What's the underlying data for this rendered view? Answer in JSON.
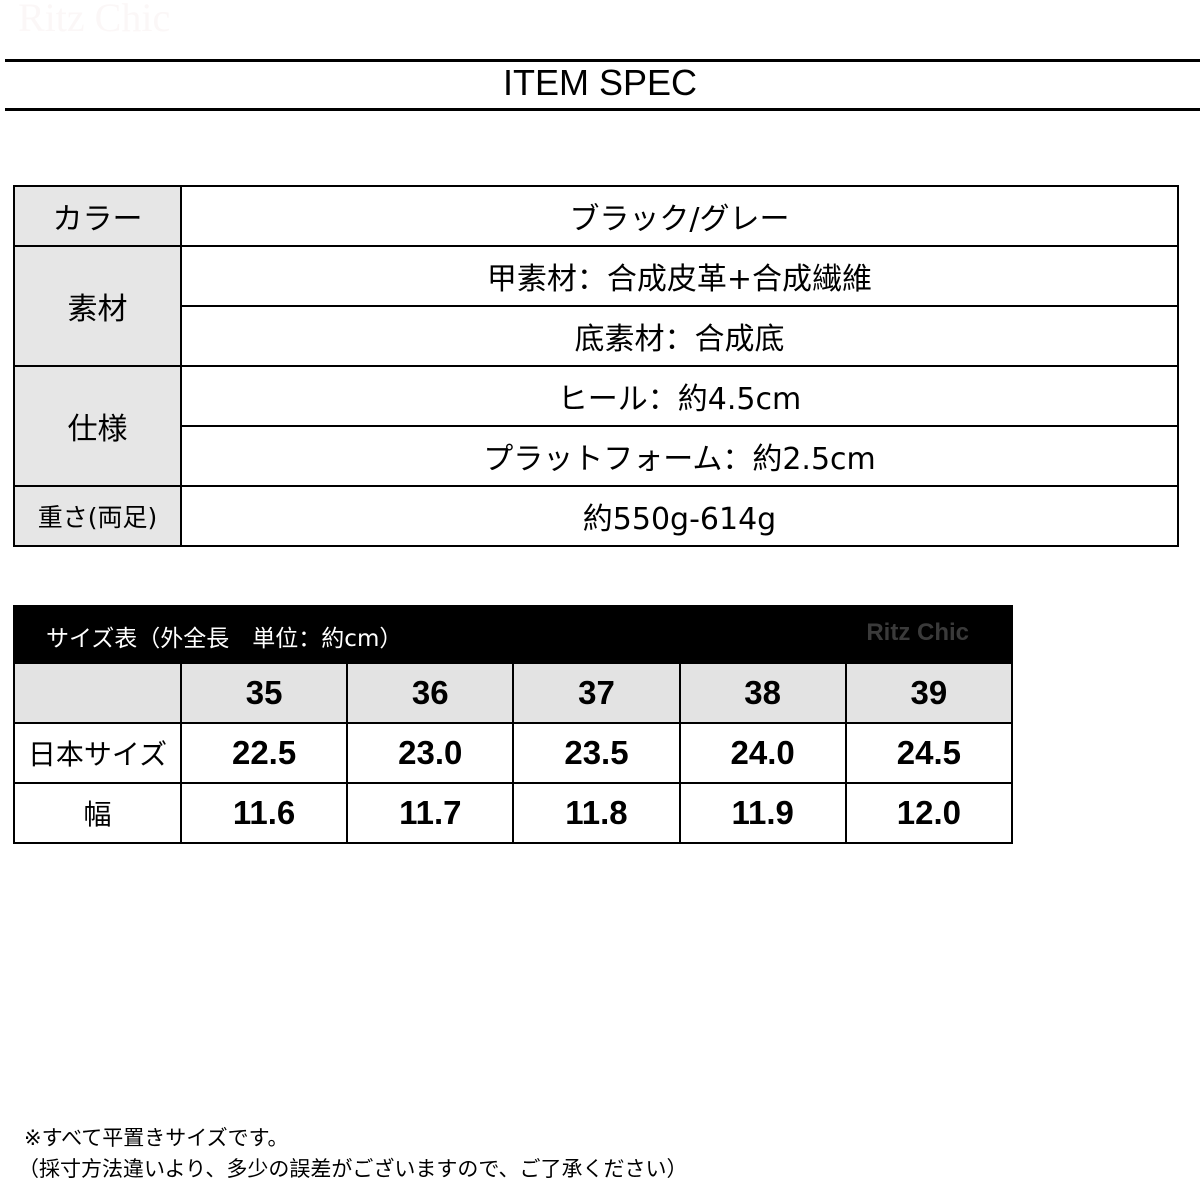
{
  "watermark": "Ritz Chic",
  "title": "ITEM SPEC",
  "spec": {
    "color_label": "カラー",
    "color_value": "ブラック/グレー",
    "material_label": "素材",
    "material_upper": "甲素材：合成皮革+合成繊維",
    "material_sole": "底素材：合成底",
    "spec_label": "仕様",
    "heel": "ヒール：約4.5cm",
    "platform": "プラットフォーム：約2.5cm",
    "weight_label": "重さ(両足)",
    "weight_value": "約550g-614g"
  },
  "size_table": {
    "caption": "サイズ表（外全長　単位：約cm）",
    "logo": "Ritz Chic",
    "sizes": [
      "35",
      "36",
      "37",
      "38",
      "39"
    ],
    "jp_label": "日本サイズ",
    "jp": [
      "22.5",
      "23.0",
      "23.5",
      "24.0",
      "24.5"
    ],
    "width_label": "幅",
    "width": [
      "11.6",
      "11.7",
      "11.8",
      "11.9",
      "12.0"
    ]
  },
  "notes": [
    "※すべて平置きサイズです。",
    "（採寸方法違いより、多少の誤差がございますので、ご了承ください）"
  ]
}
